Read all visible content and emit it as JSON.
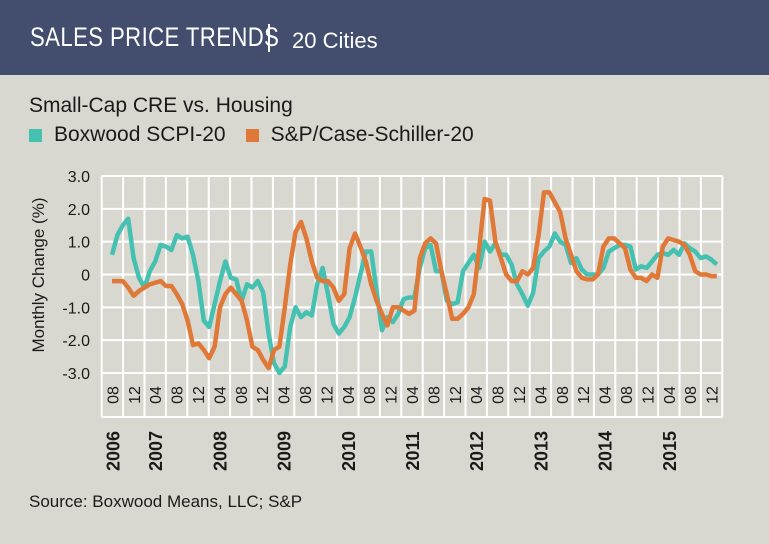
{
  "header": {
    "title": "SALES PRICE TRENDS",
    "subtitle": "20 Cities"
  },
  "source": "Source: Boxwood Means, LLC; S&P",
  "colors": {
    "header_bg": "#434e6e",
    "background": "#d9d8d0",
    "boxwood": "#45c1b1",
    "case_schiller": "#e07838"
  },
  "chart_data": {
    "type": "line",
    "title": "Small-Cap CRE vs. Housing",
    "ylabel": "Monthly Change (%)",
    "xlabel": "",
    "ylim": [
      -3.0,
      3.0
    ],
    "yticks": [
      "3.0",
      "2.0",
      "1.0",
      "0",
      "-1.0",
      "-2.0",
      "-3.0"
    ],
    "grid": true,
    "legend": "top-left",
    "x_start": "2006-08",
    "x_end": "2015-12",
    "month_tick_labels": [
      "08",
      "12",
      "04",
      "08",
      "12",
      "04",
      "08",
      "12",
      "04",
      "08",
      "12",
      "04",
      "08",
      "12",
      "04",
      "08",
      "12",
      "04",
      "08",
      "12",
      "04",
      "08",
      "12",
      "04",
      "08",
      "12",
      "04",
      "08",
      "12"
    ],
    "year_labels": [
      "2006",
      "2007",
      "2008",
      "2009",
      "2010",
      "2011",
      "2012",
      "2013",
      "2014",
      "2015"
    ],
    "series": [
      {
        "name": "Boxwood SCPI-20",
        "values": [
          0.6,
          1.2,
          1.5,
          1.7,
          0.5,
          -0.1,
          -0.4,
          0.1,
          0.4,
          0.9,
          0.85,
          0.75,
          1.2,
          1.1,
          1.15,
          0.6,
          -0.2,
          -1.4,
          -1.6,
          -0.9,
          -0.2,
          0.4,
          -0.1,
          -0.15,
          -0.8,
          -0.3,
          -0.4,
          -0.2,
          -0.55,
          -1.8,
          -2.7,
          -3.0,
          -2.8,
          -1.6,
          -1.0,
          -1.3,
          -1.15,
          -1.25,
          -0.3,
          0.2,
          -0.6,
          -1.5,
          -1.8,
          -1.6,
          -1.3,
          -0.7,
          0.0,
          0.7,
          0.7,
          -0.5,
          -1.7,
          -1.3,
          -1.45,
          -1.2,
          -0.75,
          -0.7,
          -0.7,
          0.2,
          0.8,
          0.9,
          0.1,
          0.1,
          -0.8,
          -0.9,
          -0.85,
          0.1,
          0.35,
          0.6,
          0.2,
          1.0,
          0.7,
          0.95,
          0.6,
          0.6,
          0.3,
          -0.3,
          -0.6,
          -0.95,
          -0.55,
          0.5,
          0.7,
          0.85,
          1.25,
          1.0,
          0.9,
          0.35,
          0.5,
          0.15,
          0.0,
          0.0,
          0.0,
          0.2,
          0.7,
          0.8,
          0.9,
          0.9,
          0.85,
          0.15,
          0.25,
          0.2,
          0.4,
          0.6,
          0.65,
          0.6,
          0.75,
          0.6,
          0.95,
          0.8,
          0.7,
          0.5,
          0.55,
          0.45,
          0.3
        ]
      },
      {
        "name": "S&P/Case-Schiller-20",
        "values": [
          -0.2,
          -0.2,
          -0.2,
          -0.4,
          -0.65,
          -0.5,
          -0.4,
          -0.3,
          -0.25,
          -0.2,
          -0.35,
          -0.35,
          -0.6,
          -0.9,
          -1.4,
          -2.15,
          -2.1,
          -2.3,
          -2.55,
          -2.2,
          -1.0,
          -0.6,
          -0.4,
          -0.6,
          -0.8,
          -1.4,
          -2.2,
          -2.3,
          -2.6,
          -2.85,
          -2.3,
          -2.2,
          -1.0,
          0.3,
          1.3,
          1.6,
          1.1,
          0.4,
          -0.1,
          -0.2,
          -0.2,
          -0.4,
          -0.8,
          -0.6,
          0.8,
          1.25,
          0.85,
          0.4,
          -0.3,
          -0.8,
          -1.2,
          -1.55,
          -1.0,
          -1.0,
          -1.1,
          -1.2,
          -1.1,
          0.5,
          0.95,
          1.1,
          0.95,
          0.1,
          -0.6,
          -1.35,
          -1.35,
          -1.2,
          -1.0,
          -0.6,
          0.8,
          2.3,
          2.25,
          1.0,
          0.5,
          0.0,
          -0.2,
          -0.2,
          0.1,
          0.0,
          0.2,
          1.2,
          2.5,
          2.5,
          2.2,
          1.9,
          1.1,
          0.6,
          0.1,
          -0.1,
          -0.15,
          -0.15,
          0.0,
          0.85,
          1.1,
          1.1,
          0.95,
          0.8,
          0.15,
          -0.1,
          -0.1,
          -0.2,
          0.0,
          -0.1,
          0.85,
          1.1,
          1.05,
          1.0,
          0.9,
          0.6,
          0.1,
          0.0,
          0.0,
          -0.05,
          -0.05
        ]
      }
    ]
  }
}
